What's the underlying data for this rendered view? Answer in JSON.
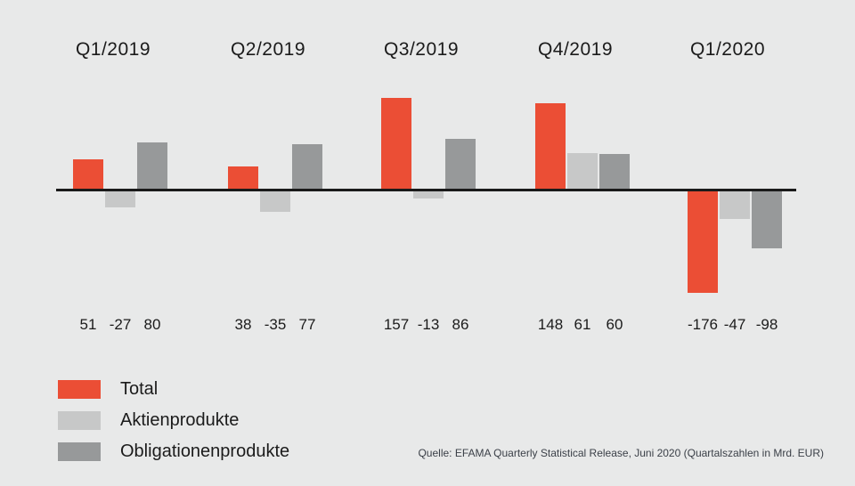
{
  "chart_data": {
    "type": "bar",
    "categories": [
      "Q1/2019",
      "Q2/2019",
      "Q3/2019",
      "Q4/2019",
      "Q1/2020"
    ],
    "series": [
      {
        "name": "Total",
        "color": "#eb4e35",
        "values": [
          51,
          38,
          157,
          148,
          -176
        ]
      },
      {
        "name": "Aktienprodukte",
        "color": "#c7c8c8",
        "values": [
          -27,
          -35,
          -13,
          61,
          -47
        ]
      },
      {
        "name": "Obligationenprodukte",
        "color": "#97999a",
        "values": [
          80,
          77,
          86,
          60,
          -98
        ]
      }
    ],
    "value_labels": [
      [
        "51",
        "-27",
        "80"
      ],
      [
        "38",
        "-35",
        "77"
      ],
      [
        "157",
        "-13",
        "86"
      ],
      [
        "148",
        "61",
        "60"
      ],
      [
        "-176",
        "-47",
        "-98"
      ]
    ],
    "title": "",
    "xlabel": "",
    "ylabel": "",
    "ylim": [
      -185,
      165
    ],
    "grid": false,
    "zero_baseline": true,
    "legend_position": "bottom-left",
    "colors": {
      "background": "#e8e9e9",
      "axis_line": "#1a1a1a",
      "text": "#1b1b1b"
    }
  },
  "legend": {
    "items": [
      {
        "label": "Total",
        "color": "#eb4e35"
      },
      {
        "label": "Aktienprodukte",
        "color": "#c7c8c8"
      },
      {
        "label": "Obligationenprodukte",
        "color": "#97999a"
      }
    ]
  },
  "footer": {
    "source": "Quelle: EFAMA Quarterly Statistical Release, Juni 2020 (Quartalszahlen in Mrd. EUR)"
  }
}
